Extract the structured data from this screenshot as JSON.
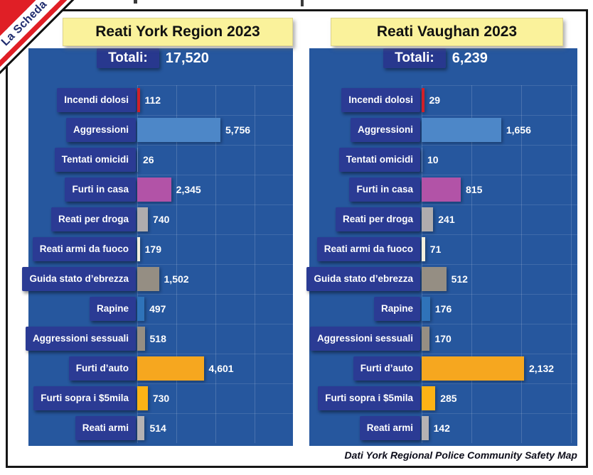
{
  "badge": {
    "label": "La Scheda"
  },
  "footer": {
    "source": "Dati York Regional Police Community Safety Map"
  },
  "colors": {
    "panel_background": "#26579E",
    "label_box": "#2B3B94",
    "totali_box": "#28388E",
    "header_background": "#FAF29B",
    "ribbon_red": "#E01F26",
    "bar_palette": [
      "#D02028",
      "#4D87C8",
      "#6C8CC0",
      "#B253A7",
      "#AFACAD",
      "#F2EFDC",
      "#958E83",
      "#2F73B9",
      "#958E83",
      "#F6A71F",
      "#FCB315",
      "#B5B2B3"
    ]
  },
  "chart_data": [
    {
      "type": "bar",
      "orientation": "horizontal",
      "title": "Reati York Region 2023",
      "total_label": "Totali:",
      "total_value": "17,520",
      "legend": "none",
      "grid": true,
      "categories": [
        "Incendi dolosi",
        "Aggressioni",
        "Tentati omicidi",
        "Furti in casa",
        "Reati per droga",
        "Reati armi da fuoco",
        "Guida stato d’ebrezza",
        "Rapine",
        "Aggressioni sessuali",
        "Furti d’auto",
        "Furti sopra i $5mila",
        "Reati armi"
      ],
      "values": [
        112,
        5756,
        26,
        2345,
        740,
        179,
        1502,
        497,
        518,
        4601,
        730,
        514
      ],
      "value_labels": [
        "112",
        "5,756",
        "26",
        "2,345",
        "740",
        "179",
        "1,502",
        "497",
        "518",
        "4,601",
        "730",
        "514"
      ]
    },
    {
      "type": "bar",
      "orientation": "horizontal",
      "title": "Reati Vaughan 2023",
      "total_label": "Totali:",
      "total_value": "6,239",
      "legend": "none",
      "grid": true,
      "categories": [
        "Incendi dolosi",
        "Aggressioni",
        "Tentati omicidi",
        "Furti in casa",
        "Reati per droga",
        "Reati armi da fuoco",
        "Guida stato d’ebrezza",
        "Rapine",
        "Aggressioni sessuali",
        "Furti d’auto",
        "Furti sopra i $5mila",
        "Reati armi"
      ],
      "values": [
        29,
        1656,
        10,
        815,
        241,
        71,
        512,
        176,
        170,
        2132,
        285,
        142
      ],
      "value_labels": [
        "29",
        "1,656",
        "10",
        "815",
        "241",
        "71",
        "512",
        "176",
        "170",
        "2,132",
        "285",
        "142"
      ]
    }
  ]
}
